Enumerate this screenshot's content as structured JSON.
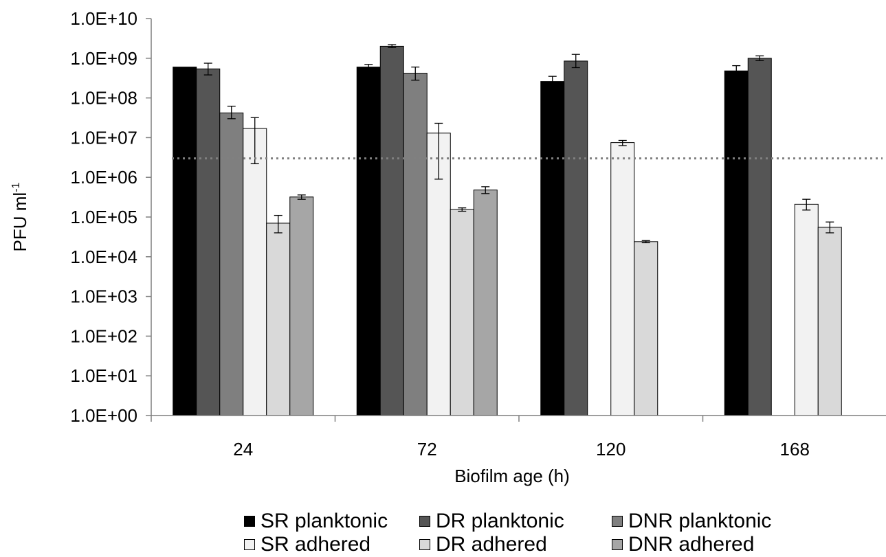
{
  "chart_data": {
    "type": "bar",
    "ylabel": "PFU ml",
    "ylabel_sup": "-1",
    "xlabel": "Biofilm age (h)",
    "yscale": "log",
    "ylim": [
      1,
      10000000000
    ],
    "yticks": [
      {
        "value": 1,
        "label": "1.0E+00"
      },
      {
        "value": 10,
        "label": "1.0E+01"
      },
      {
        "value": 100,
        "label": "1.0E+02"
      },
      {
        "value": 1000,
        "label": "1.0E+03"
      },
      {
        "value": 10000,
        "label": "1.0E+04"
      },
      {
        "value": 100000,
        "label": "1.0E+05"
      },
      {
        "value": 1000000,
        "label": "1.0E+06"
      },
      {
        "value": 10000000,
        "label": "1.0E+07"
      },
      {
        "value": 100000000,
        "label": "1.0E+08"
      },
      {
        "value": 1000000000,
        "label": "1.0E+09"
      },
      {
        "value": 10000000000,
        "label": "1.0E+10"
      }
    ],
    "categories": [
      "24",
      "72",
      "120",
      "168"
    ],
    "reference_line": {
      "value": 3000000,
      "style": "dotted"
    },
    "grid": false,
    "legend_position": "bottom",
    "series": [
      {
        "name": "SR planktonic",
        "color": "#000000",
        "values": [
          600000000,
          600000000,
          260000000,
          480000000
        ],
        "error": [
          null,
          [
            530000000,
            700000000
          ],
          [
            200000000,
            350000000
          ],
          [
            380000000,
            650000000
          ]
        ]
      },
      {
        "name": "DR planktonic",
        "color": "#555555",
        "values": [
          540000000,
          2000000000,
          850000000,
          1000000000
        ],
        "error": [
          [
            380000000,
            750000000
          ],
          [
            1850000000,
            2200000000
          ],
          [
            580000000,
            1250000000
          ],
          [
            870000000,
            1150000000
          ]
        ]
      },
      {
        "name": "DNR planktonic",
        "color": "#7f7f7f",
        "values": [
          42000000,
          420000000,
          null,
          null
        ],
        "error": [
          [
            30000000,
            62000000
          ],
          [
            280000000,
            600000000
          ],
          null,
          null
        ]
      },
      {
        "name": "SR adhered",
        "color": "#f2f2f2",
        "values": [
          17000000,
          13000000,
          7500000,
          210000
        ],
        "error": [
          [
            2200000,
            32000000
          ],
          [
            900000,
            23000000
          ],
          [
            6300000,
            8500000
          ],
          [
            150000,
            280000
          ]
        ]
      },
      {
        "name": "DR adhered",
        "color": "#d9d9d9",
        "values": [
          70000,
          155000,
          24000,
          55000
        ],
        "error": [
          [
            40000,
            110000
          ],
          [
            140000,
            170000
          ],
          [
            22500,
            25500
          ],
          [
            40000,
            75000
          ]
        ]
      },
      {
        "name": "DNR adhered",
        "color": "#a6a6a6",
        "values": [
          320000,
          480000,
          null,
          null
        ],
        "error": [
          [
            280000,
            360000
          ],
          [
            390000,
            580000
          ],
          null,
          null
        ]
      }
    ]
  }
}
